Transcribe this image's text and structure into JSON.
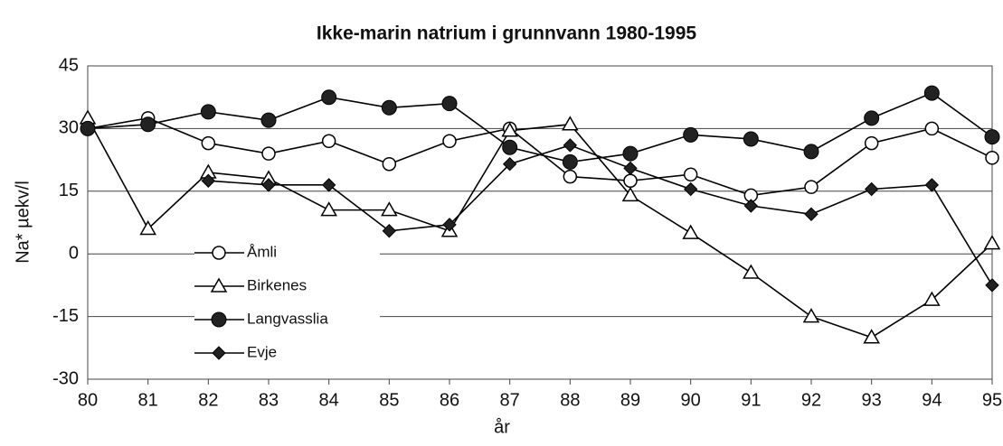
{
  "chart_data": {
    "type": "line",
    "title": "Ikke-marin natrium i grunnvann 1980-1995",
    "x_label": "år",
    "y_label": "Na* µekv/l",
    "categories": [
      "80",
      "81",
      "82",
      "83",
      "84",
      "85",
      "86",
      "87",
      "88",
      "89",
      "90",
      "91",
      "92",
      "93",
      "94",
      "95"
    ],
    "ylim": [
      -30,
      45
    ],
    "yticks": [
      -30,
      -15,
      0,
      15,
      30,
      45
    ],
    "grid": true,
    "legend": "lower-left",
    "series": [
      {
        "name": "Åmli",
        "color": "#000000",
        "marker": "open-circle",
        "values": [
          30,
          32.5,
          26.5,
          24,
          27,
          21.5,
          27,
          30,
          18.5,
          17.5,
          19,
          14,
          16,
          26.5,
          30,
          23
        ]
      },
      {
        "name": "Birkenes",
        "color": "#000000",
        "marker": "open-triangle",
        "values": [
          32.5,
          6,
          19.5,
          18,
          10.5,
          10.5,
          5.5,
          29.5,
          31,
          14,
          5,
          -4.5,
          -15,
          -20,
          -11,
          2.5
        ]
      },
      {
        "name": "Langvasslia",
        "color": "#000000",
        "marker": "filled-circle",
        "values": [
          30,
          31,
          34,
          32,
          37.5,
          35,
          36,
          25.5,
          22,
          24,
          28.5,
          27.5,
          24.5,
          32.5,
          38.5,
          28
        ]
      },
      {
        "name": "Evje",
        "color": "#000000",
        "marker": "filled-diamond",
        "values": [
          null,
          null,
          17.5,
          16.5,
          16.5,
          5.5,
          7,
          21.5,
          26,
          20.5,
          15.5,
          11.5,
          9.5,
          15.5,
          16.5,
          -7.5
        ]
      }
    ]
  }
}
